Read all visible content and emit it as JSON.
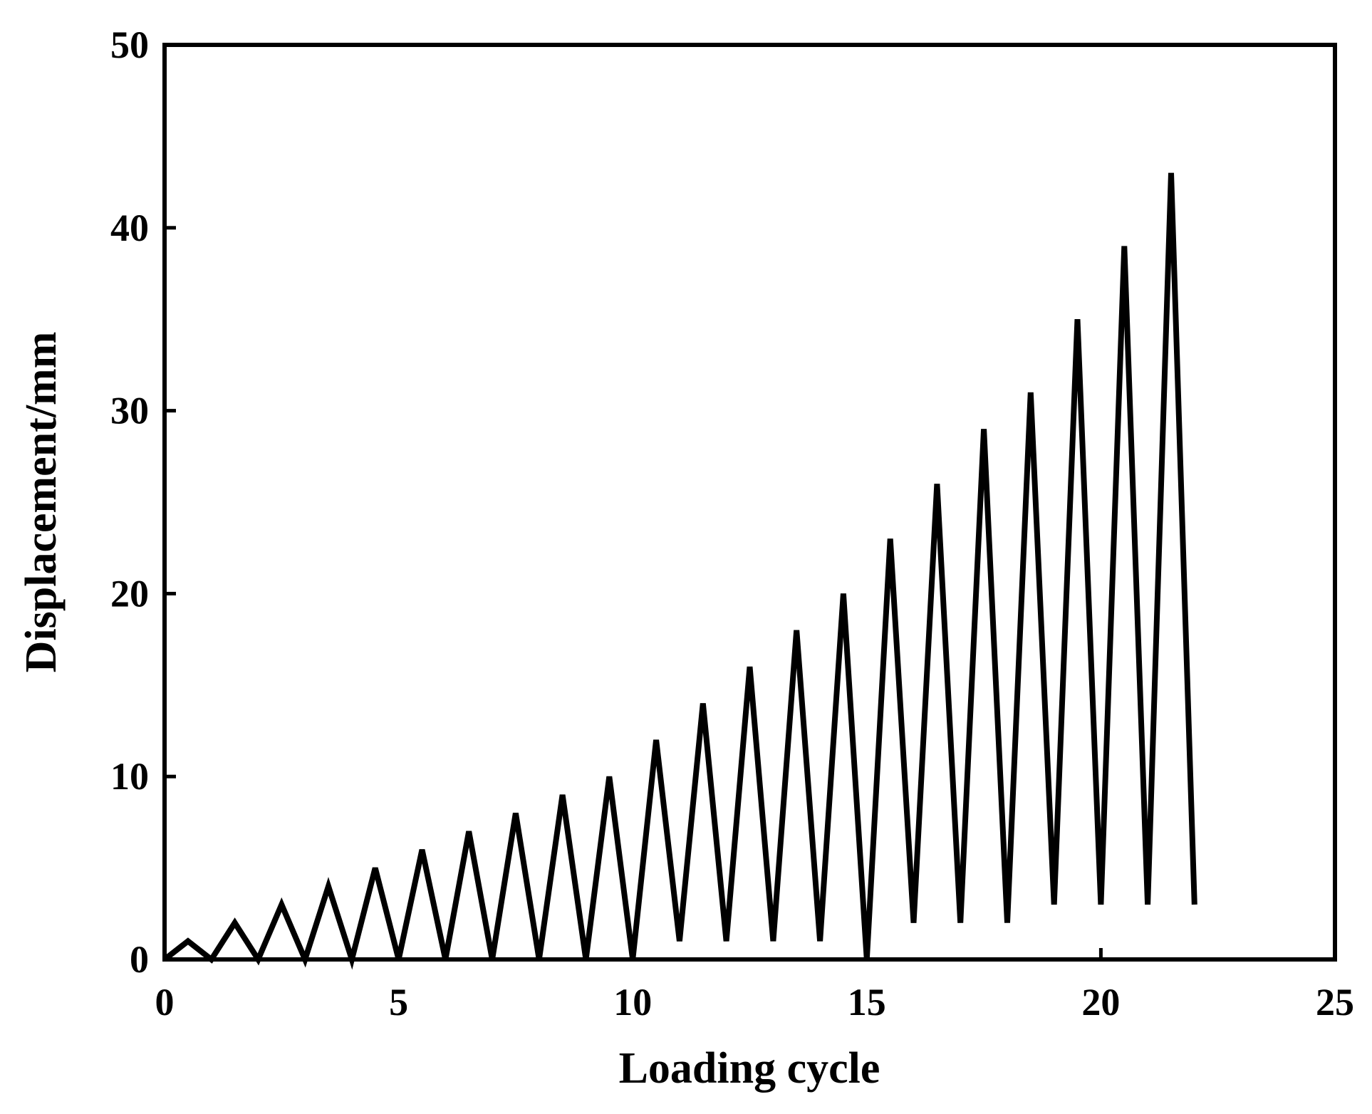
{
  "chart_data": {
    "type": "line",
    "title": "",
    "xlabel": "Loading cycle",
    "ylabel": "Displacement/mm",
    "xlim": [
      0,
      25
    ],
    "ylim": [
      0,
      50
    ],
    "x_ticks": [
      0,
      5,
      10,
      15,
      20,
      25
    ],
    "y_ticks": [
      0,
      10,
      20,
      30,
      40,
      50
    ],
    "x_tick_labels": [
      "0",
      "5",
      "10",
      "15",
      "20",
      "25"
    ],
    "y_tick_labels": [
      "0",
      "10",
      "20",
      "30",
      "40",
      "50"
    ],
    "grid": false,
    "legend": "none",
    "line_color": "#000000",
    "series": [
      {
        "x": [
          0,
          0.5,
          1,
          1.5,
          2,
          2.5,
          3,
          3.5,
          4,
          4.5,
          5,
          5.5,
          6,
          6.5,
          7,
          7.5,
          8,
          8.5,
          9,
          9.5,
          10,
          10.5,
          11,
          11.5,
          12,
          12.5,
          13,
          13.5,
          14,
          14.5,
          15,
          15.5,
          16,
          16.5,
          17,
          17.5,
          18,
          18.5,
          19,
          19.5,
          20,
          20.5,
          21,
          21.5,
          22
        ],
        "y": [
          0,
          1,
          0,
          2,
          0,
          3,
          0,
          4,
          0,
          5,
          0,
          6,
          0,
          7,
          0,
          8,
          0,
          9,
          0,
          10,
          0,
          12,
          1,
          14,
          1,
          16,
          1,
          18,
          1,
          20,
          0,
          23,
          2,
          26,
          2,
          29,
          2,
          31,
          3,
          35,
          3,
          39,
          3,
          43,
          3
        ]
      }
    ]
  }
}
